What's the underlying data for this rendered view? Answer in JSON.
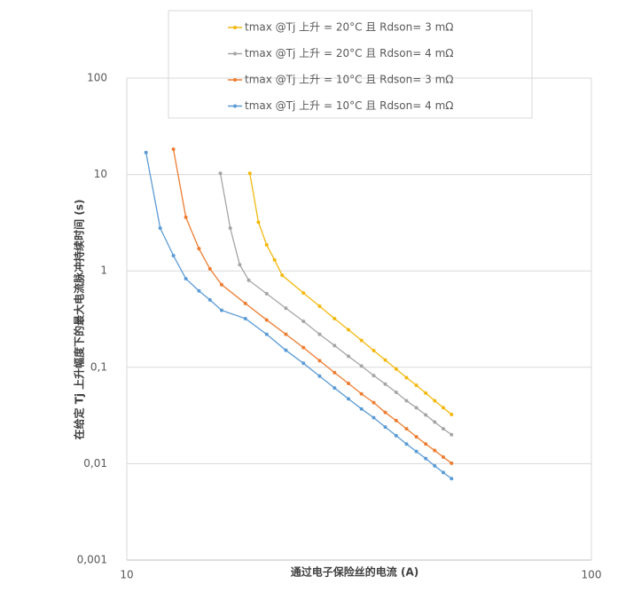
{
  "chart_data": {
    "type": "line",
    "xlabel": "通过电子保险丝的电流 (A)",
    "ylabel": "在给定 Tj 上升幅度下的最大电流脉冲持续时间 (s)",
    "xscale": "log",
    "yscale": "log",
    "xlim": [
      10,
      100
    ],
    "xticks": [
      10,
      100
    ],
    "ylim": [
      0.001,
      100
    ],
    "yticks": [
      {
        "value": 0.001,
        "label": "0,001"
      },
      {
        "value": 0.01,
        "label": "0,01"
      },
      {
        "value": 0.1,
        "label": "0,1"
      },
      1,
      10,
      100
    ],
    "grid": true,
    "legend": "top",
    "series": [
      {
        "name": "tmax @Tj 上升 = 20°C 且 Rdson= 3 mΩ",
        "color": "#f2b90f",
        "x": [
          18.4,
          19.2,
          20,
          20.8,
          21.6,
          24,
          26,
          28,
          30,
          32,
          34,
          36,
          38,
          40,
          42,
          44,
          46,
          48,
          50
        ],
        "values": [
          10.3,
          3.2,
          1.86,
          1.3,
          0.9,
          0.59,
          0.43,
          0.32,
          0.245,
          0.19,
          0.149,
          0.119,
          0.096,
          0.078,
          0.065,
          0.054,
          0.045,
          0.038,
          0.0324
        ]
      },
      {
        "name": "tmax @Tj 上升 = 20°C 且 Rdson= 4 mΩ",
        "color": "#a5a5a5",
        "x": [
          15.9,
          16.7,
          17.5,
          18.3,
          20,
          22,
          24,
          26,
          28,
          30,
          32,
          34,
          36,
          38,
          40,
          42,
          44,
          46,
          48,
          50
        ],
        "values": [
          10.3,
          2.78,
          1.16,
          0.8,
          0.58,
          0.41,
          0.3,
          0.22,
          0.168,
          0.13,
          0.103,
          0.082,
          0.067,
          0.055,
          0.045,
          0.038,
          0.032,
          0.027,
          0.023,
          0.02
        ]
      },
      {
        "name": "tmax @Tj 上升 = 10°C 且 Rdson= 3 mΩ",
        "color": "#ed7d31",
        "x": [
          12.6,
          13.4,
          14.3,
          15.1,
          16,
          18,
          20,
          22,
          24,
          26,
          28,
          30,
          32,
          34,
          36,
          38,
          40,
          42,
          44,
          46,
          48,
          50
        ],
        "values": [
          18.3,
          3.6,
          1.7,
          1.05,
          0.72,
          0.46,
          0.31,
          0.22,
          0.16,
          0.117,
          0.088,
          0.068,
          0.053,
          0.043,
          0.034,
          0.028,
          0.023,
          0.019,
          0.016,
          0.0137,
          0.0117,
          0.0101
        ]
      },
      {
        "name": "tmax @Tj 上升 = 10°C 且 Rdson= 4 mΩ",
        "color": "#5b9bd5",
        "x": [
          11,
          11.8,
          12.6,
          13.4,
          14.3,
          15.1,
          16,
          18,
          20,
          22,
          24,
          26,
          28,
          30,
          32,
          34,
          36,
          38,
          40,
          42,
          44,
          46,
          48,
          50
        ],
        "values": [
          16.9,
          2.78,
          1.44,
          0.83,
          0.62,
          0.5,
          0.39,
          0.32,
          0.22,
          0.15,
          0.11,
          0.081,
          0.061,
          0.047,
          0.037,
          0.03,
          0.024,
          0.0195,
          0.016,
          0.0134,
          0.0113,
          0.0095,
          0.0081,
          0.007
        ]
      }
    ]
  }
}
